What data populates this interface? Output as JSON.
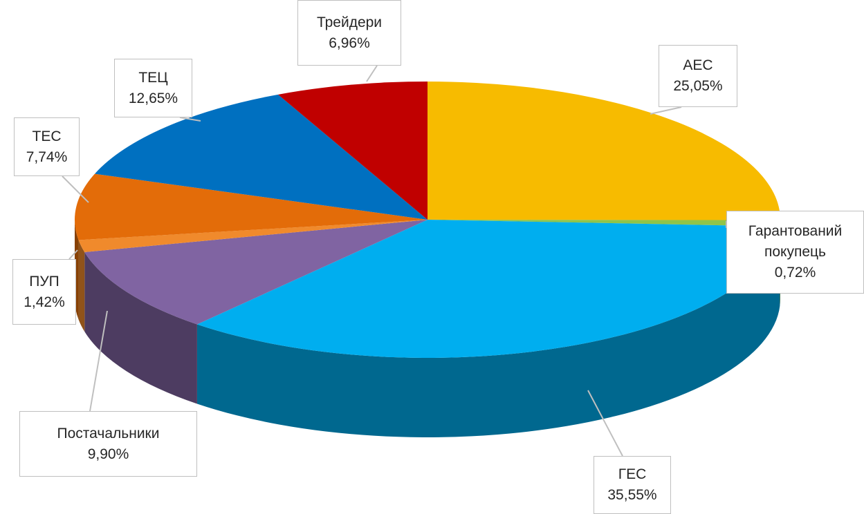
{
  "chart_data": {
    "type": "pie3d",
    "categories": [
      "АЕС",
      "Гарантований покупець",
      "ГЕС",
      "Постачальники",
      "ПУП",
      "ТЕС",
      "ТЕЦ",
      "Трейдери"
    ],
    "values": [
      25.05,
      0.72,
      35.55,
      9.9,
      1.42,
      7.74,
      12.65,
      6.96
    ],
    "value_labels": [
      "25,05%",
      "0,72%",
      "35,55%",
      "9,90%",
      "1,42%",
      "7,74%",
      "12,65%",
      "6,96%"
    ],
    "colors": [
      "#f7bb00",
      "#8fc44a",
      "#00aeef",
      "#8064a2",
      "#f08a2c",
      "#e36c09",
      "#0070c0",
      "#c00000"
    ]
  }
}
